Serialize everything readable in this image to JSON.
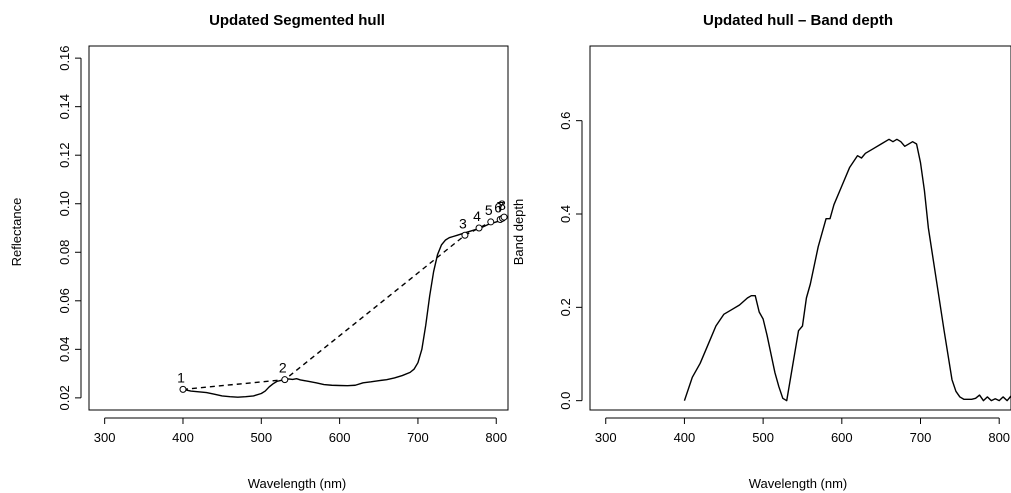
{
  "chart_data": [
    {
      "type": "line",
      "title": "Updated Segmented hull",
      "xlabel": "Wavelength (nm)",
      "ylabel": "Reflectance",
      "xlim": [
        280,
        815
      ],
      "ylim": [
        0.015,
        0.165
      ],
      "xticks": [
        300,
        400,
        500,
        600,
        700,
        800
      ],
      "yticks": [
        0.02,
        0.04,
        0.06,
        0.08,
        0.1,
        0.12,
        0.14,
        0.16
      ],
      "ytick_labels": [
        "0.02",
        "0.04",
        "0.06",
        "0.08",
        "0.10",
        "0.12",
        "0.14",
        "0.16"
      ],
      "grid": false,
      "series": [
        {
          "style": "solid",
          "x": [
            400,
            410,
            420,
            430,
            440,
            450,
            460,
            470,
            480,
            490,
            500,
            505,
            510,
            515,
            520,
            525,
            530,
            535,
            540,
            545,
            550,
            560,
            570,
            580,
            590,
            600,
            610,
            620,
            630,
            640,
            650,
            660,
            670,
            680,
            690,
            695,
            700,
            705,
            710,
            715,
            720,
            725,
            730,
            735,
            740,
            745,
            750,
            760,
            770,
            780,
            790,
            800,
            810,
            815
          ],
          "y": [
            0.0235,
            0.0228,
            0.0225,
            0.0222,
            0.0215,
            0.0208,
            0.0205,
            0.0203,
            0.0205,
            0.0208,
            0.0218,
            0.0228,
            0.0245,
            0.0258,
            0.0268,
            0.0272,
            0.0275,
            0.0278,
            0.0276,
            0.0279,
            0.0274,
            0.0268,
            0.0262,
            0.0255,
            0.0252,
            0.0251,
            0.025,
            0.0252,
            0.0262,
            0.0266,
            0.0271,
            0.0275,
            0.0282,
            0.0292,
            0.0305,
            0.0318,
            0.0345,
            0.04,
            0.05,
            0.062,
            0.072,
            0.079,
            0.083,
            0.085,
            0.086,
            0.0865,
            0.087,
            0.088,
            0.089,
            0.09,
            0.0915,
            0.0925,
            0.0935,
            0.0945
          ]
        },
        {
          "style": "dashed",
          "x": [
            400,
            530,
            760,
            778,
            793,
            805,
            808,
            810
          ],
          "y": [
            0.0235,
            0.0275,
            0.087,
            0.09,
            0.0925,
            0.0935,
            0.094,
            0.0945
          ]
        }
      ],
      "hull_points": {
        "labels": [
          "1",
          "2",
          "3",
          "4",
          "5",
          "6",
          "7",
          "8"
        ],
        "x": [
          400,
          530,
          760,
          778,
          793,
          805,
          808,
          810
        ],
        "y": [
          0.0235,
          0.0275,
          0.087,
          0.09,
          0.0925,
          0.0935,
          0.094,
          0.0945
        ]
      }
    },
    {
      "type": "line",
      "title": "Updated hull – Band depth",
      "xlabel": "Wavelength (nm)",
      "ylabel": "Band depth",
      "xlim": [
        280,
        815
      ],
      "ylim": [
        -0.02,
        0.76
      ],
      "xticks": [
        300,
        400,
        500,
        600,
        700,
        800
      ],
      "yticks": [
        0.0,
        0.2,
        0.4,
        0.6
      ],
      "ytick_labels": [
        "0.0",
        "0.2",
        "0.4",
        "0.6"
      ],
      "grid": false,
      "series": [
        {
          "style": "solid",
          "x": [
            400,
            410,
            420,
            430,
            440,
            450,
            460,
            470,
            480,
            485,
            490,
            495,
            500,
            505,
            510,
            515,
            520,
            525,
            530,
            535,
            540,
            545,
            550,
            555,
            560,
            570,
            580,
            585,
            590,
            600,
            610,
            620,
            625,
            630,
            640,
            650,
            660,
            665,
            670,
            675,
            680,
            690,
            695,
            700,
            705,
            710,
            720,
            730,
            740,
            745,
            750,
            755,
            760,
            765,
            770,
            775,
            780,
            785,
            790,
            795,
            800,
            805,
            810,
            815
          ],
          "y": [
            0.0,
            0.05,
            0.08,
            0.12,
            0.16,
            0.185,
            0.195,
            0.205,
            0.22,
            0.225,
            0.225,
            0.19,
            0.175,
            0.14,
            0.1,
            0.06,
            0.03,
            0.005,
            0.0,
            0.05,
            0.1,
            0.15,
            0.16,
            0.22,
            0.25,
            0.33,
            0.39,
            0.39,
            0.42,
            0.46,
            0.5,
            0.525,
            0.52,
            0.53,
            0.54,
            0.55,
            0.56,
            0.555,
            0.56,
            0.555,
            0.545,
            0.555,
            0.55,
            0.51,
            0.45,
            0.37,
            0.26,
            0.15,
            0.045,
            0.02,
            0.008,
            0.003,
            0.003,
            0.003,
            0.005,
            0.012,
            0.0,
            0.008,
            0.0,
            0.004,
            0.0,
            0.008,
            0.0,
            0.01
          ]
        }
      ]
    }
  ]
}
